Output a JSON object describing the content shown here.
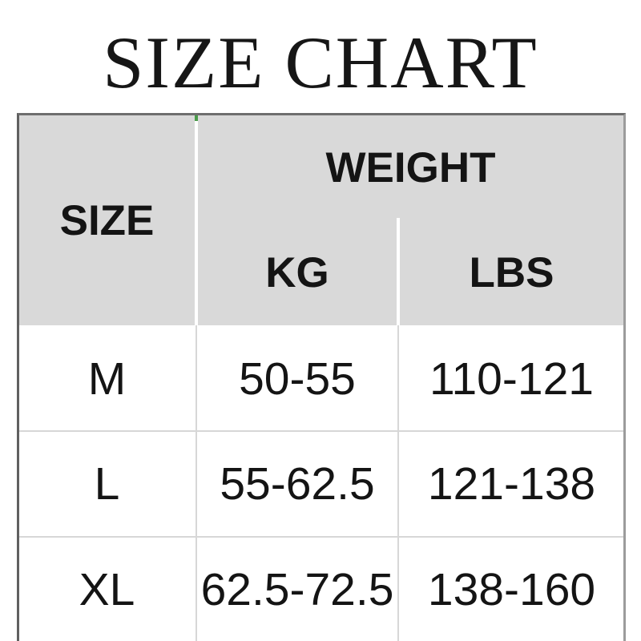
{
  "title": "SIZE CHART",
  "chart_data": {
    "type": "table",
    "title": "SIZE CHART",
    "header": {
      "size": "SIZE",
      "weight_group": "WEIGHT",
      "kg": "KG",
      "lbs": "LBS"
    },
    "rows": [
      {
        "size": "M",
        "kg": "50-55",
        "lbs": "110-121"
      },
      {
        "size": "L",
        "kg": "55-62.5",
        "lbs": "121-138"
      },
      {
        "size": "XL",
        "kg": "62.5-72.5",
        "lbs": "138-160"
      }
    ]
  },
  "colors": {
    "header_bg": "#d9d9d9",
    "border_dark": "#606060",
    "border_light": "#9c9c9c",
    "grid_line": "#d7d7d7",
    "text": "#141414",
    "artifact_green": "#4a9b4a"
  }
}
